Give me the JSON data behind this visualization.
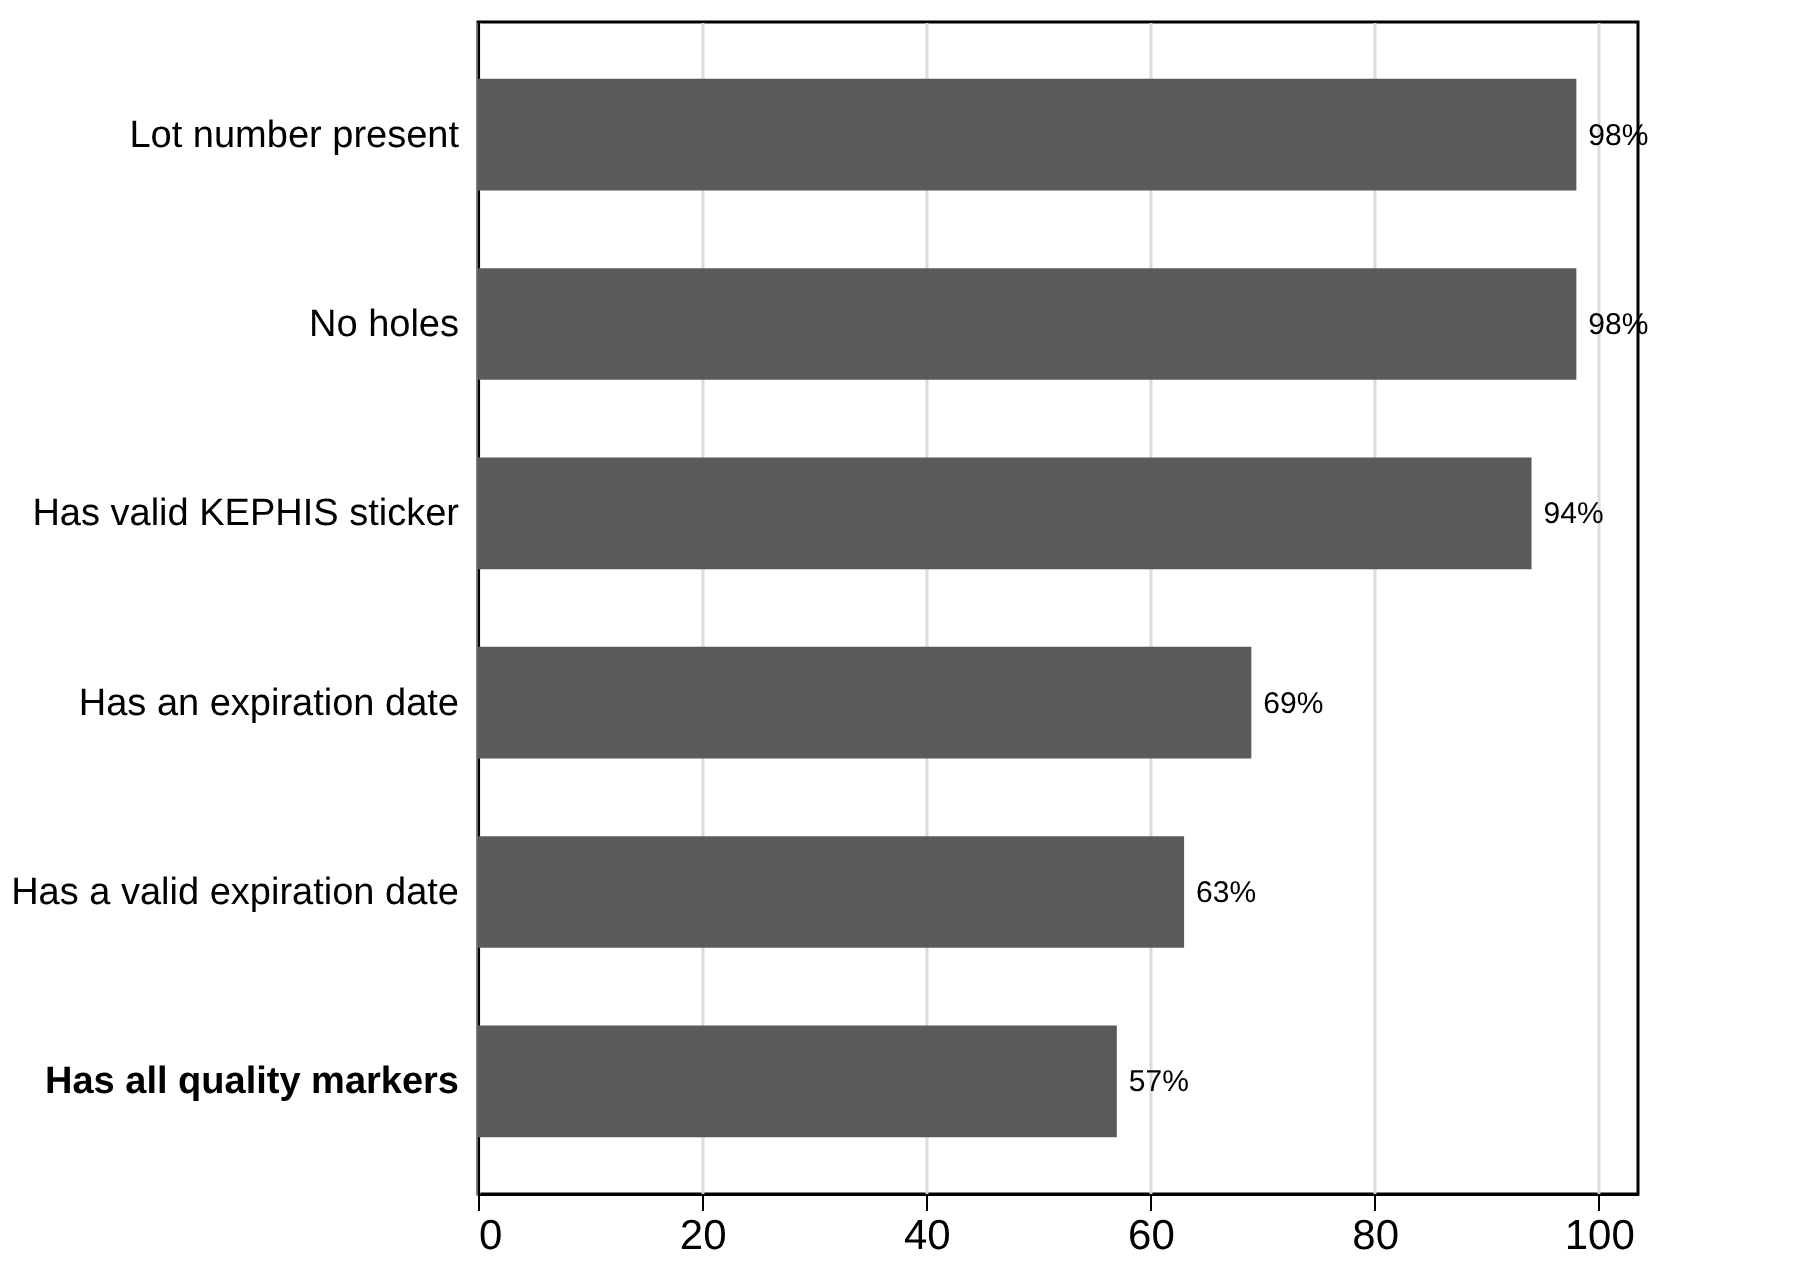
{
  "chart_data": {
    "type": "bar",
    "orientation": "horizontal",
    "categories": [
      "Lot number present",
      "No holes",
      "Has valid KEPHIS sticker",
      "Has an expiration date",
      "Has a valid expiration date",
      "Has all quality markers"
    ],
    "values": [
      98,
      98,
      94,
      69,
      63,
      57
    ],
    "value_labels": [
      "98%",
      "98%",
      "94%",
      "69%",
      "63%",
      "57%"
    ],
    "color": "#5a5a5a",
    "xlim": [
      0,
      103.5
    ],
    "xticks": [
      0,
      20,
      40,
      60,
      80,
      100
    ],
    "grid": "x"
  }
}
